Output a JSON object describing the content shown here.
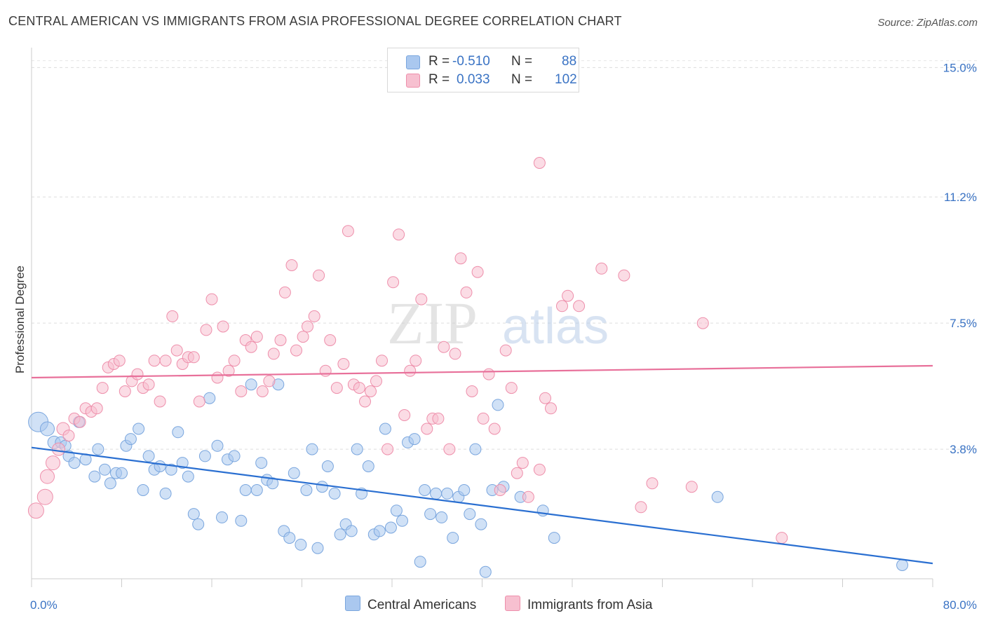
{
  "title": "CENTRAL AMERICAN VS IMMIGRANTS FROM ASIA PROFESSIONAL DEGREE CORRELATION CHART",
  "source": "Source: ZipAtlas.com",
  "watermark": {
    "zip": "ZIP",
    "atlas": "atlas"
  },
  "legend": {
    "r_label": "R =",
    "n_label": "N =",
    "rows": [
      {
        "r": "-0.510",
        "n": "88",
        "color": "#aac8ef",
        "stroke": "#7aa6de"
      },
      {
        "r": "0.033",
        "n": "102",
        "color": "#f7c0d0",
        "stroke": "#ee8fab"
      }
    ]
  },
  "bottom_legend": [
    "Central Americans",
    "Immigrants from Asia"
  ],
  "chart_data": {
    "type": "scatter",
    "title": "CENTRAL AMERICAN VS IMMIGRANTS FROM ASIA PROFESSIONAL DEGREE CORRELATION CHART",
    "xlabel": "",
    "ylabel": "Professional Degree",
    "xlim": [
      0,
      80
    ],
    "ylim": [
      0,
      15.5
    ],
    "x_tick_labels": [
      "0.0%",
      "80.0%"
    ],
    "y_ticks": [
      3.8,
      7.5,
      11.2,
      15.0
    ],
    "y_tick_labels": [
      "3.8%",
      "7.5%",
      "11.2%",
      "15.0%"
    ],
    "grid": "horizontal dashed",
    "legend_placement": "top-center",
    "series": [
      {
        "name": "Central Americans",
        "color": "#7aa6de",
        "fill": "#aac8ef",
        "line_color": "#2a6fd1",
        "trend": [
          [
            0,
            3.85
          ],
          [
            80,
            0.45
          ]
        ],
        "points": [
          [
            0.6,
            4.6,
            14
          ],
          [
            1.4,
            4.4,
            10
          ],
          [
            2.0,
            4.0,
            9
          ],
          [
            2.6,
            4.0,
            8
          ],
          [
            3.0,
            3.9,
            8
          ],
          [
            3.3,
            3.6,
            8
          ],
          [
            4.2,
            4.6,
            8
          ],
          [
            4.8,
            3.5,
            8
          ],
          [
            3.8,
            3.4,
            8
          ],
          [
            5.6,
            3.0,
            8
          ],
          [
            5.9,
            3.8,
            8
          ],
          [
            6.5,
            3.2,
            8
          ],
          [
            7.0,
            2.8,
            8
          ],
          [
            7.5,
            3.1,
            8
          ],
          [
            8.0,
            3.1,
            8
          ],
          [
            8.4,
            3.9,
            8
          ],
          [
            8.8,
            4.1,
            8
          ],
          [
            9.5,
            4.4,
            8
          ],
          [
            9.9,
            2.6,
            8
          ],
          [
            10.4,
            3.6,
            8
          ],
          [
            10.9,
            3.2,
            8
          ],
          [
            11.4,
            3.3,
            8
          ],
          [
            11.9,
            2.5,
            8
          ],
          [
            12.4,
            3.2,
            8
          ],
          [
            13.0,
            4.3,
            8
          ],
          [
            13.4,
            3.4,
            8
          ],
          [
            13.9,
            3.0,
            8
          ],
          [
            14.4,
            1.9,
            8
          ],
          [
            14.8,
            1.6,
            8
          ],
          [
            15.4,
            3.6,
            8
          ],
          [
            15.8,
            5.3,
            8
          ],
          [
            16.5,
            3.9,
            8
          ],
          [
            16.9,
            1.8,
            8
          ],
          [
            17.4,
            3.5,
            8
          ],
          [
            18.0,
            3.6,
            8
          ],
          [
            18.6,
            1.7,
            8
          ],
          [
            19.0,
            2.6,
            8
          ],
          [
            19.5,
            5.7,
            8
          ],
          [
            20.0,
            2.6,
            8
          ],
          [
            20.4,
            3.4,
            8
          ],
          [
            20.9,
            2.9,
            8
          ],
          [
            21.4,
            2.8,
            8
          ],
          [
            21.9,
            5.7,
            8
          ],
          [
            22.4,
            1.4,
            8
          ],
          [
            22.9,
            1.2,
            8
          ],
          [
            23.3,
            3.1,
            8
          ],
          [
            23.9,
            1.0,
            8
          ],
          [
            24.4,
            2.6,
            8
          ],
          [
            24.9,
            3.8,
            8
          ],
          [
            25.4,
            0.9,
            8
          ],
          [
            25.8,
            2.7,
            8
          ],
          [
            26.3,
            3.3,
            8
          ],
          [
            26.9,
            2.5,
            8
          ],
          [
            27.4,
            1.3,
            8
          ],
          [
            27.9,
            1.6,
            8
          ],
          [
            28.4,
            1.4,
            8
          ],
          [
            28.9,
            3.8,
            8
          ],
          [
            29.3,
            2.5,
            8
          ],
          [
            29.9,
            3.3,
            8
          ],
          [
            30.4,
            1.3,
            8
          ],
          [
            30.9,
            1.4,
            8
          ],
          [
            31.4,
            4.4,
            8
          ],
          [
            31.9,
            1.5,
            8
          ],
          [
            32.4,
            2.0,
            8
          ],
          [
            32.9,
            1.7,
            8
          ],
          [
            33.4,
            4.0,
            8
          ],
          [
            34.0,
            4.1,
            8
          ],
          [
            34.5,
            0.5,
            8
          ],
          [
            34.9,
            2.6,
            8
          ],
          [
            35.4,
            1.9,
            8
          ],
          [
            35.9,
            2.5,
            8
          ],
          [
            36.4,
            1.8,
            8
          ],
          [
            36.9,
            2.5,
            8
          ],
          [
            37.4,
            1.2,
            8
          ],
          [
            37.9,
            2.4,
            8
          ],
          [
            38.4,
            2.6,
            8
          ],
          [
            38.9,
            1.9,
            8
          ],
          [
            39.4,
            3.8,
            8
          ],
          [
            39.9,
            1.6,
            8
          ],
          [
            40.3,
            0.2,
            8
          ],
          [
            40.9,
            2.6,
            8
          ],
          [
            41.4,
            5.1,
            8
          ],
          [
            41.9,
            2.7,
            8
          ],
          [
            43.4,
            2.4,
            8
          ],
          [
            45.4,
            2.0,
            8
          ],
          [
            46.4,
            1.2,
            8
          ],
          [
            60.9,
            2.4,
            8
          ],
          [
            77.3,
            0.4,
            8
          ]
        ]
      },
      {
        "name": "Immigrants from Asia",
        "color": "#ee8fab",
        "fill": "#f7c0d0",
        "line_color": "#e8709a",
        "trend": [
          [
            0,
            5.9
          ],
          [
            80,
            6.25
          ]
        ],
        "points": [
          [
            0.4,
            2.0,
            11
          ],
          [
            1.2,
            2.4,
            11
          ],
          [
            1.4,
            3.0,
            10
          ],
          [
            1.9,
            3.4,
            10
          ],
          [
            2.4,
            3.8,
            9
          ],
          [
            2.8,
            4.4,
            9
          ],
          [
            3.3,
            4.2,
            8
          ],
          [
            3.8,
            4.7,
            8
          ],
          [
            4.3,
            4.6,
            8
          ],
          [
            4.8,
            5.0,
            8
          ],
          [
            5.3,
            4.9,
            8
          ],
          [
            5.8,
            5.0,
            8
          ],
          [
            6.3,
            5.6,
            8
          ],
          [
            6.8,
            6.2,
            8
          ],
          [
            7.3,
            6.3,
            8
          ],
          [
            7.8,
            6.4,
            8
          ],
          [
            8.3,
            5.5,
            8
          ],
          [
            8.9,
            5.8,
            8
          ],
          [
            9.4,
            6.0,
            8
          ],
          [
            9.9,
            5.6,
            8
          ],
          [
            10.4,
            5.7,
            8
          ],
          [
            10.9,
            6.4,
            8
          ],
          [
            11.4,
            5.2,
            8
          ],
          [
            11.9,
            6.4,
            8
          ],
          [
            12.5,
            7.7,
            8
          ],
          [
            12.9,
            6.7,
            8
          ],
          [
            13.4,
            6.3,
            8
          ],
          [
            13.9,
            6.5,
            8
          ],
          [
            14.4,
            6.5,
            8
          ],
          [
            14.9,
            5.2,
            8
          ],
          [
            15.5,
            7.3,
            8
          ],
          [
            16.0,
            8.2,
            8
          ],
          [
            16.5,
            5.9,
            8
          ],
          [
            17.0,
            7.4,
            8
          ],
          [
            17.5,
            6.1,
            8
          ],
          [
            18.0,
            6.4,
            8
          ],
          [
            18.6,
            5.5,
            8
          ],
          [
            19.0,
            7.0,
            8
          ],
          [
            19.5,
            6.8,
            8
          ],
          [
            20.0,
            7.1,
            8
          ],
          [
            20.5,
            5.5,
            8
          ],
          [
            21.1,
            5.8,
            8
          ],
          [
            21.5,
            6.6,
            8
          ],
          [
            22.1,
            7.0,
            8
          ],
          [
            22.5,
            8.4,
            8
          ],
          [
            23.1,
            9.2,
            8
          ],
          [
            23.5,
            6.7,
            8
          ],
          [
            24.1,
            7.1,
            8
          ],
          [
            24.5,
            7.4,
            8
          ],
          [
            25.1,
            7.7,
            8
          ],
          [
            25.5,
            8.9,
            8
          ],
          [
            26.1,
            6.1,
            8
          ],
          [
            26.5,
            7.0,
            8
          ],
          [
            27.1,
            5.6,
            8
          ],
          [
            27.7,
            6.3,
            8
          ],
          [
            28.1,
            10.2,
            8
          ],
          [
            28.6,
            5.7,
            8
          ],
          [
            29.1,
            5.6,
            8
          ],
          [
            29.6,
            5.2,
            8
          ],
          [
            30.1,
            5.5,
            8
          ],
          [
            30.6,
            5.8,
            8
          ],
          [
            31.1,
            6.4,
            8
          ],
          [
            31.6,
            3.8,
            8
          ],
          [
            32.1,
            8.7,
            8
          ],
          [
            32.6,
            10.1,
            8
          ],
          [
            33.1,
            4.8,
            8
          ],
          [
            33.6,
            6.1,
            8
          ],
          [
            34.1,
            6.4,
            8
          ],
          [
            34.6,
            8.2,
            8
          ],
          [
            35.1,
            4.4,
            8
          ],
          [
            35.6,
            4.7,
            8
          ],
          [
            36.1,
            4.7,
            8
          ],
          [
            36.6,
            6.8,
            8
          ],
          [
            37.1,
            3.8,
            8
          ],
          [
            37.6,
            6.6,
            8
          ],
          [
            38.1,
            9.4,
            8
          ],
          [
            38.6,
            8.4,
            8
          ],
          [
            39.1,
            5.5,
            8
          ],
          [
            39.6,
            9.0,
            8
          ],
          [
            40.1,
            4.7,
            8
          ],
          [
            40.6,
            6.0,
            8
          ],
          [
            41.1,
            4.4,
            8
          ],
          [
            41.6,
            2.6,
            8
          ],
          [
            42.1,
            6.7,
            8
          ],
          [
            42.6,
            5.6,
            8
          ],
          [
            43.1,
            3.1,
            8
          ],
          [
            43.6,
            3.4,
            8
          ],
          [
            44.1,
            2.4,
            8
          ],
          [
            45.1,
            3.2,
            8
          ],
          [
            45.6,
            5.3,
            8
          ],
          [
            46.1,
            5.0,
            8
          ],
          [
            47.1,
            8.0,
            8
          ],
          [
            47.6,
            8.3,
            8
          ],
          [
            48.6,
            8.0,
            8
          ],
          [
            50.6,
            9.1,
            8
          ],
          [
            52.6,
            8.9,
            8
          ],
          [
            54.1,
            2.1,
            8
          ],
          [
            55.1,
            2.8,
            8
          ],
          [
            58.6,
            2.7,
            8
          ],
          [
            59.6,
            7.5,
            8
          ],
          [
            66.6,
            1.2,
            8
          ],
          [
            45.1,
            12.2,
            8
          ]
        ]
      }
    ]
  }
}
